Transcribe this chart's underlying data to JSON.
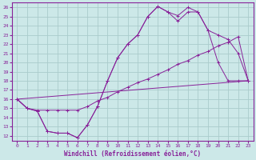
{
  "title": "",
  "xlabel": "Windchill (Refroidissement éolien,°C)",
  "ylabel": "",
  "background_color": "#cce8e8",
  "grid_color": "#aacccc",
  "line_color": "#882299",
  "xlim": [
    -0.5,
    23.5
  ],
  "ylim": [
    11.5,
    26.5
  ],
  "xticks": [
    0,
    1,
    2,
    3,
    4,
    5,
    6,
    7,
    8,
    9,
    10,
    11,
    12,
    13,
    14,
    15,
    16,
    17,
    18,
    19,
    20,
    21,
    22,
    23
  ],
  "yticks": [
    12,
    13,
    14,
    15,
    16,
    17,
    18,
    19,
    20,
    21,
    22,
    23,
    24,
    25,
    26
  ],
  "series": [
    {
      "x": [
        0,
        1,
        2,
        3,
        4,
        5,
        6,
        7,
        8,
        9,
        10,
        11,
        12,
        13,
        14,
        15,
        16,
        17,
        18,
        19,
        20,
        21,
        22,
        23
      ],
      "y": [
        16.0,
        15.0,
        14.7,
        12.5,
        12.3,
        12.3,
        11.8,
        13.2,
        15.2,
        18.0,
        20.5,
        22.0,
        23.0,
        25.0,
        26.1,
        25.5,
        25.1,
        26.0,
        25.5,
        23.5,
        20.0,
        18.0,
        18.0,
        18.0
      ],
      "markers": true
    },
    {
      "x": [
        0,
        1,
        2,
        3,
        4,
        5,
        6,
        7,
        8,
        9,
        10,
        11,
        12,
        13,
        14,
        15,
        16,
        17,
        18,
        19,
        20,
        21,
        22,
        23
      ],
      "y": [
        16.0,
        15.0,
        14.7,
        12.5,
        12.3,
        12.3,
        11.8,
        13.2,
        15.2,
        18.0,
        20.5,
        22.0,
        23.0,
        25.0,
        26.1,
        25.5,
        24.5,
        25.5,
        25.5,
        23.5,
        23.0,
        22.5,
        21.0,
        18.0
      ],
      "markers": true
    },
    {
      "x": [
        0,
        23
      ],
      "y": [
        16.0,
        18.0
      ],
      "markers": false
    },
    {
      "x": [
        0,
        1,
        2,
        3,
        4,
        5,
        6,
        7,
        8,
        9,
        10,
        11,
        12,
        13,
        14,
        15,
        16,
        17,
        18,
        19,
        20,
        21,
        22,
        23
      ],
      "y": [
        16.0,
        15.0,
        14.8,
        14.8,
        14.8,
        14.8,
        14.8,
        15.2,
        15.8,
        16.2,
        16.8,
        17.3,
        17.8,
        18.2,
        18.7,
        19.2,
        19.8,
        20.2,
        20.8,
        21.2,
        21.8,
        22.2,
        22.8,
        18.0
      ],
      "markers": true
    }
  ]
}
